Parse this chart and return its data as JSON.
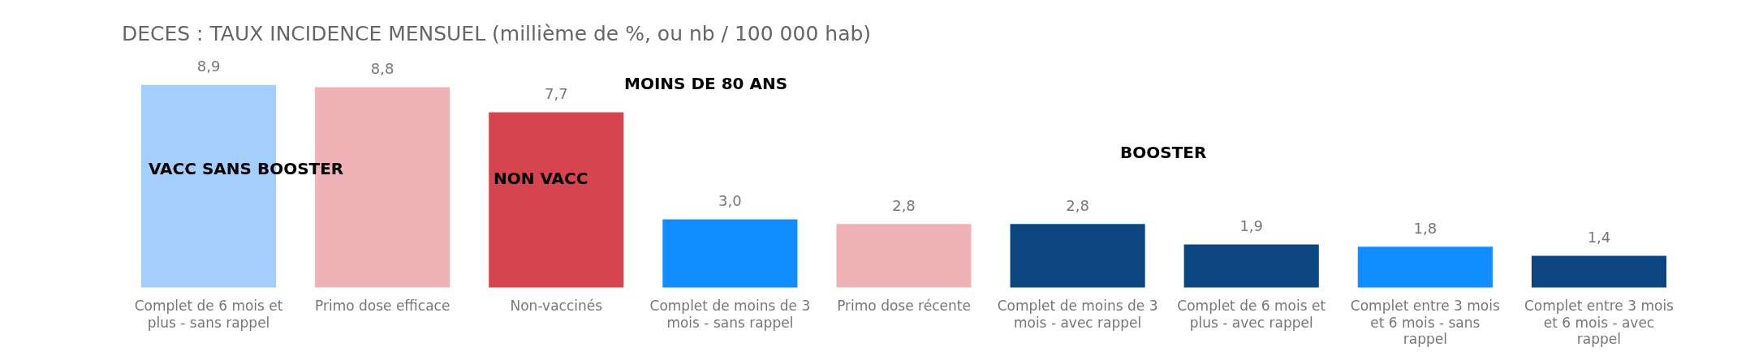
{
  "chart_data": {
    "type": "bar",
    "title": "DECES : TAUX INCIDENCE MENSUEL (millième de %, ou nb / 100 000 hab)",
    "categories": [
      "Complet de 6 mois et plus - sans rappel",
      "Primo dose efficace",
      "Non-vaccinés",
      "Complet de moins de 3 mois - sans rappel",
      "Primo dose récente",
      "Complet de moins de 3 mois - avec rappel",
      "Complet de 6 mois et plus - avec rappel",
      "Complet entre 3 mois et 6 mois - sans rappel",
      "Complet entre 3 mois et 6 mois - avec rappel"
    ],
    "values": [
      8.9,
      8.8,
      7.7,
      3.0,
      2.8,
      2.8,
      1.9,
      1.8,
      1.4
    ],
    "colors": [
      "#a4cffc",
      "#efb3b7",
      "#d6444f",
      "#118dff",
      "#efb3b7",
      "#0b4680",
      "#0b4680",
      "#118dff",
      "#0b4680"
    ],
    "value_labels": [
      "8,9",
      "8,8",
      "7,7",
      "3,0",
      "2,8",
      "2,8",
      "1,9",
      "1,8",
      "1,4"
    ],
    "tick_labels": "x",
    "grid": false,
    "legend": false,
    "annotations": [
      "MOINS DE 80 ANS",
      "VACC SANS BOOSTER",
      "NON VACC",
      "BOOSTER"
    ]
  }
}
